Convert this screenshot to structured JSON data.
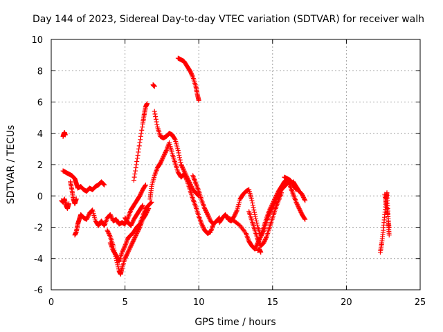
{
  "chart_data": {
    "type": "scatter",
    "title": "Day 144 of 2023, Sidereal Day-to-day VTEC variation (SDTVAR) for receiver walh",
    "xlabel": "GPS time / hours",
    "ylabel": "SDTVAR / TECUs",
    "xlim": [
      0,
      25
    ],
    "ylim": [
      -6,
      10
    ],
    "xticks": [
      0,
      5,
      10,
      15,
      20,
      25
    ],
    "yticks": [
      -6,
      -4,
      -2,
      0,
      2,
      4,
      6,
      8,
      10
    ],
    "xtick_labels": [
      "0",
      "5",
      "10",
      "15",
      "20",
      "25"
    ],
    "ytick_labels": [
      "-6",
      "-4",
      "-2",
      "0",
      "2",
      "4",
      "6",
      "8",
      "10"
    ],
    "grid": true,
    "marker": "plus",
    "color": "#ff0000",
    "series": [
      {
        "name": "seg-a",
        "x": [
          0.8,
          0.85,
          0.9,
          0.95
        ],
        "y": [
          3.8,
          3.95,
          4.05,
          3.9
        ]
      },
      {
        "name": "seg-b",
        "x": [
          0.7,
          0.8,
          0.9,
          1.0,
          1.1,
          1.2
        ],
        "y": [
          -0.3,
          -0.4,
          -0.2,
          -0.6,
          -0.8,
          -0.5
        ]
      },
      {
        "name": "seg-c",
        "x": [
          0.8,
          1.0,
          1.2,
          1.4,
          1.6,
          1.7,
          1.8,
          2.0,
          2.2,
          2.4,
          2.6,
          2.8,
          3.0,
          3.2,
          3.4,
          3.6
        ],
        "y": [
          1.6,
          1.5,
          1.4,
          1.3,
          1.1,
          0.8,
          0.5,
          0.6,
          0.4,
          0.3,
          0.5,
          0.4,
          0.6,
          0.7,
          0.9,
          0.7
        ]
      },
      {
        "name": "seg-d",
        "x": [
          1.3,
          1.4,
          1.5,
          1.6,
          1.7
        ],
        "y": [
          0.9,
          0.4,
          -0.2,
          -0.5,
          -0.2
        ]
      },
      {
        "name": "seg-e",
        "x": [
          1.6,
          1.7,
          1.8,
          1.9,
          2.0,
          2.2,
          2.4,
          2.6,
          2.8,
          3.0,
          3.2,
          3.4,
          3.6,
          3.8,
          4.0,
          4.2,
          4.4,
          4.6,
          4.8,
          5.0,
          5.2,
          5.4,
          5.6,
          5.8,
          6.0,
          6.2,
          6.4
        ],
        "y": [
          -2.5,
          -2.3,
          -1.8,
          -1.5,
          -1.2,
          -1.4,
          -1.5,
          -1.1,
          -0.9,
          -1.6,
          -1.9,
          -1.6,
          -1.9,
          -1.4,
          -1.2,
          -1.6,
          -1.5,
          -1.8,
          -1.7,
          -1.8,
          -1.4,
          -0.9,
          -0.6,
          -0.3,
          0.0,
          0.4,
          0.7
        ]
      },
      {
        "name": "seg-f",
        "x": [
          3.8,
          4.0,
          4.2,
          4.4,
          4.6,
          4.7,
          4.8,
          5.0,
          5.2,
          5.4,
          5.6,
          5.8,
          6.0,
          6.2,
          6.4,
          6.6
        ],
        "y": [
          -2.2,
          -2.6,
          -3.2,
          -4.0,
          -4.8,
          -5.0,
          -4.6,
          -4.0,
          -3.6,
          -3.2,
          -2.8,
          -2.4,
          -2.0,
          -1.5,
          -1.2,
          -0.8
        ]
      },
      {
        "name": "seg-g",
        "x": [
          4.0,
          4.2,
          4.4,
          4.6,
          4.8,
          5.0,
          5.2,
          5.4,
          5.6,
          5.8,
          6.0,
          6.2,
          6.4,
          6.6,
          6.8
        ],
        "y": [
          -3.0,
          -3.5,
          -3.8,
          -4.2,
          -3.6,
          -3.2,
          -2.7,
          -2.5,
          -2.3,
          -2.0,
          -1.8,
          -1.3,
          -0.8,
          -0.6,
          -0.4
        ]
      },
      {
        "name": "seg-h",
        "x": [
          5.6,
          5.8,
          6.0,
          6.2,
          6.3,
          6.4,
          6.5
        ],
        "y": [
          1.0,
          2.2,
          3.4,
          4.6,
          5.2,
          5.7,
          5.9
        ]
      },
      {
        "name": "seg-i",
        "x": [
          5.0,
          5.2,
          5.4,
          5.6,
          5.8,
          6.0,
          6.2
        ],
        "y": [
          -1.4,
          -1.7,
          -1.9,
          -1.5,
          -1.2,
          -0.9,
          -0.6
        ]
      },
      {
        "name": "seg-j",
        "x": [
          6.7,
          6.8,
          7.0,
          7.2,
          7.4,
          7.6,
          7.8,
          8.0,
          8.2,
          8.4,
          8.6,
          8.8,
          9.0,
          9.2,
          9.4,
          9.6,
          9.8,
          10.0,
          10.2,
          10.4,
          10.6,
          10.8,
          11.0
        ],
        "y": [
          -0.2,
          0.6,
          1.3,
          1.8,
          2.1,
          2.5,
          2.9,
          3.4,
          2.7,
          2.1,
          1.5,
          1.2,
          1.4,
          1.0,
          0.4,
          -0.2,
          -0.7,
          -1.3,
          -1.8,
          -2.2,
          -2.4,
          -2.3,
          -1.8
        ]
      },
      {
        "name": "seg-k",
        "x": [
          7.0,
          7.2,
          7.4,
          7.6,
          7.8,
          8.0,
          8.2,
          8.4,
          8.6,
          8.8,
          9.0,
          9.2,
          9.4,
          9.6,
          9.8,
          10.0
        ],
        "y": [
          5.4,
          4.4,
          3.8,
          3.7,
          3.8,
          4.0,
          3.9,
          3.6,
          2.9,
          2.0,
          1.6,
          1.2,
          0.8,
          0.4,
          0.2,
          0.0
        ]
      },
      {
        "name": "seg-l",
        "x": [
          6.9,
          7.0
        ],
        "y": [
          7.1,
          7.0
        ]
      },
      {
        "name": "seg-m",
        "x": [
          8.6,
          8.8,
          9.0,
          9.2,
          9.4,
          9.6,
          9.8,
          9.9,
          10.0
        ],
        "y": [
          8.8,
          8.7,
          8.6,
          8.3,
          8.0,
          7.6,
          7.0,
          6.5,
          6.1
        ]
      },
      {
        "name": "seg-n",
        "x": [
          9.6,
          9.8,
          10.0,
          10.2,
          10.4,
          10.6,
          10.8,
          11.0,
          11.2,
          11.4
        ],
        "y": [
          1.3,
          0.8,
          0.3,
          -0.3,
          -0.8,
          -1.2,
          -1.6,
          -1.8,
          -1.6,
          -1.4
        ]
      },
      {
        "name": "seg-o",
        "x": [
          11.4,
          11.6,
          11.8,
          12.0,
          12.2,
          12.4,
          12.6,
          12.8,
          13.0,
          13.2,
          13.4,
          13.6,
          13.8,
          14.0,
          14.2,
          14.4,
          14.6,
          14.8,
          15.0,
          15.2,
          15.4,
          15.6,
          15.8,
          16.0
        ],
        "y": [
          -1.7,
          -1.4,
          -1.2,
          -1.5,
          -1.6,
          -1.3,
          -0.9,
          -0.2,
          0.1,
          0.3,
          0.4,
          -0.3,
          -1.2,
          -2.0,
          -2.6,
          -2.2,
          -1.6,
          -1.1,
          -0.7,
          -0.3,
          0.1,
          0.4,
          0.6,
          0.8
        ]
      },
      {
        "name": "seg-p",
        "x": [
          12.0,
          12.4,
          12.8,
          13.2,
          13.4,
          13.6,
          13.8,
          14.0,
          14.2,
          14.4,
          14.6,
          14.8,
          15.0,
          15.2,
          15.4,
          15.6,
          15.8,
          16.0,
          16.2,
          16.4,
          16.6
        ],
        "y": [
          -1.4,
          -1.6,
          -1.9,
          -2.4,
          -2.9,
          -3.2,
          -3.4,
          -3.0,
          -2.6,
          -2.0,
          -1.4,
          -0.9,
          -0.5,
          -0.1,
          0.3,
          0.6,
          0.9,
          1.1,
          1.0,
          0.7,
          0.4
        ]
      },
      {
        "name": "seg-q",
        "x": [
          13.4,
          13.6,
          13.8,
          14.0,
          14.2,
          14.4,
          14.6,
          14.8,
          15.0,
          15.2,
          15.4,
          15.6
        ],
        "y": [
          -1.0,
          -1.6,
          -2.2,
          -2.8,
          -3.2,
          -3.0,
          -2.6,
          -2.0,
          -1.4,
          -0.8,
          -0.3,
          0.2
        ]
      },
      {
        "name": "seg-r",
        "x": [
          15.8,
          16.0,
          16.2,
          16.4,
          16.6,
          16.8,
          17.0,
          17.2
        ],
        "y": [
          1.2,
          1.1,
          0.6,
          0.1,
          -0.4,
          -0.8,
          -1.2,
          -1.5
        ]
      },
      {
        "name": "seg-s",
        "x": [
          16.4,
          16.6,
          16.8,
          17.0,
          17.2
        ],
        "y": [
          0.9,
          0.6,
          0.3,
          0.1,
          -0.3
        ]
      },
      {
        "name": "seg-t",
        "x": [
          14.0,
          14.1,
          14.2
        ],
        "y": [
          -3.5,
          -3.4,
          -3.6
        ]
      },
      {
        "name": "seg-u",
        "x": [
          22.3,
          22.4,
          22.5,
          22.6,
          22.7,
          22.75,
          22.8,
          22.85,
          22.9
        ],
        "y": [
          -3.6,
          -3.0,
          -2.2,
          -1.2,
          -0.2,
          0.2,
          -0.8,
          -1.8,
          -2.5
        ]
      },
      {
        "name": "seg-v",
        "x": [
          22.6,
          22.7,
          22.8,
          22.9
        ],
        "y": [
          0.1,
          -0.5,
          -1.2,
          -2.0
        ]
      }
    ]
  }
}
